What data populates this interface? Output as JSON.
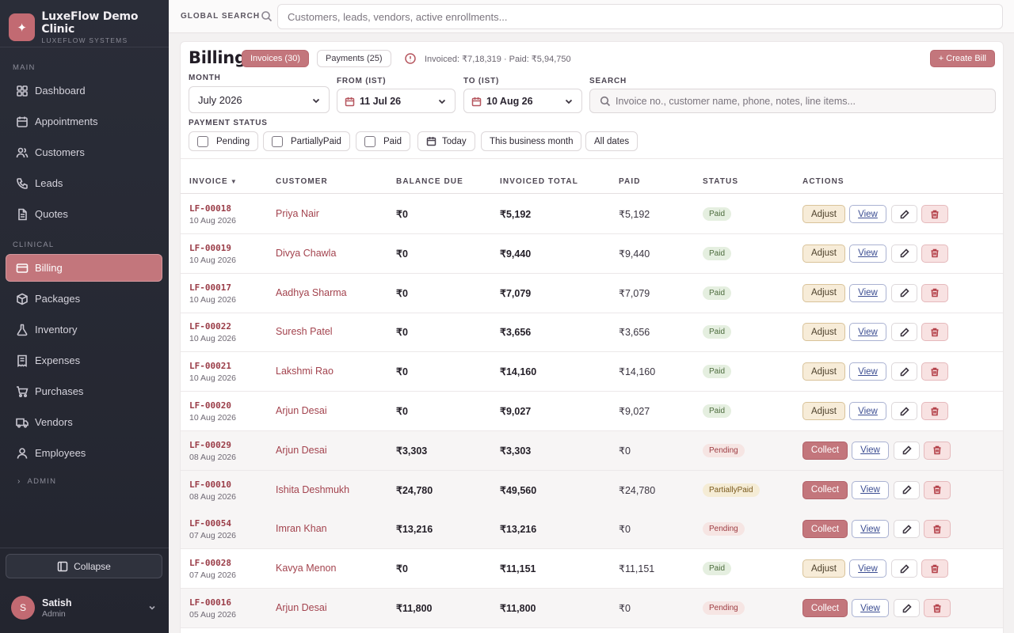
{
  "brand": {
    "name": "LuxeFlow Demo Clinic",
    "subtitle": "LUXEFLOW SYSTEMS"
  },
  "sidebar": {
    "section_main": "MAIN",
    "main_items": [
      {
        "label": "Dashboard",
        "icon": "dashboard-icon"
      },
      {
        "label": "Appointments",
        "icon": "calendar-icon"
      },
      {
        "label": "Customers",
        "icon": "users-icon"
      },
      {
        "label": "Leads",
        "icon": "phone-icon"
      },
      {
        "label": "Quotes",
        "icon": "document-icon"
      }
    ],
    "section_clinical": "CLINICAL",
    "clinical_items": [
      {
        "label": "Billing",
        "icon": "card-icon",
        "active": true
      },
      {
        "label": "Packages",
        "icon": "box-icon"
      },
      {
        "label": "Inventory",
        "icon": "flask-icon"
      },
      {
        "label": "Expenses",
        "icon": "receipt-icon"
      },
      {
        "label": "Purchases",
        "icon": "cart-icon"
      },
      {
        "label": "Vendors",
        "icon": "truck-icon"
      },
      {
        "label": "Employees",
        "icon": "user-icon"
      }
    ],
    "admin_label": "ADMIN",
    "collapse_label": "Collapse",
    "user": {
      "initial": "S",
      "name": "Satish",
      "role": "Admin"
    }
  },
  "topbar": {
    "label": "GLOBAL SEARCH",
    "placeholder": "Customers, leads, vendors, active enrollments..."
  },
  "billing": {
    "title": "Billing",
    "tab_invoices": "Invoices (30)",
    "tab_payments": "Payments (25)",
    "summary": "Invoiced: ₹7,18,319 · Paid: ₹5,94,750",
    "create_label": "+ Create Bill",
    "month_label": "MONTH",
    "month_value": "July 2026",
    "from_label": "FROM (IST)",
    "from_value": "11 Jul 26",
    "to_label": "TO (IST)",
    "to_value": "10 Aug 26",
    "search_label": "SEARCH",
    "search_placeholder": "Invoice no., customer name, phone, notes, line items...",
    "payment_status_label": "PAYMENT STATUS",
    "status_chips": [
      "Pending",
      "PartiallyPaid",
      "Paid"
    ],
    "date_chips": [
      "Today",
      "This business month",
      "All dates"
    ]
  },
  "table": {
    "headers": {
      "invoice": "INVOICE",
      "sort_indicator": "▼",
      "customer": "CUSTOMER",
      "balance": "BALANCE DUE",
      "total": "INVOICED TOTAL",
      "paid": "PAID",
      "status": "STATUS",
      "actions": "ACTIONS"
    },
    "action_labels": {
      "adjust": "Adjust",
      "collect": "Collect",
      "view": "View"
    },
    "rows": [
      {
        "invoice": "LF-00018",
        "date": "10 Aug 2026",
        "customer": "Priya Nair",
        "balance": "₹0",
        "total": "₹5,192",
        "paid": "₹5,192",
        "status": "Paid",
        "primary": "Adjust"
      },
      {
        "invoice": "LF-00019",
        "date": "10 Aug 2026",
        "customer": "Divya Chawla",
        "balance": "₹0",
        "total": "₹9,440",
        "paid": "₹9,440",
        "status": "Paid",
        "primary": "Adjust"
      },
      {
        "invoice": "LF-00017",
        "date": "10 Aug 2026",
        "customer": "Aadhya Sharma",
        "balance": "₹0",
        "total": "₹7,079",
        "paid": "₹7,079",
        "status": "Paid",
        "primary": "Adjust"
      },
      {
        "invoice": "LF-00022",
        "date": "10 Aug 2026",
        "customer": "Suresh Patel",
        "balance": "₹0",
        "total": "₹3,656",
        "paid": "₹3,656",
        "status": "Paid",
        "primary": "Adjust"
      },
      {
        "invoice": "LF-00021",
        "date": "10 Aug 2026",
        "customer": "Lakshmi Rao",
        "balance": "₹0",
        "total": "₹14,160",
        "paid": "₹14,160",
        "status": "Paid",
        "primary": "Adjust"
      },
      {
        "invoice": "LF-00020",
        "date": "10 Aug 2026",
        "customer": "Arjun Desai",
        "balance": "₹0",
        "total": "₹9,027",
        "paid": "₹9,027",
        "status": "Paid",
        "primary": "Adjust"
      },
      {
        "invoice": "LF-00029",
        "date": "08 Aug 2026",
        "customer": "Arjun Desai",
        "balance": "₹3,303",
        "total": "₹3,303",
        "paid": "₹0",
        "status": "Pending",
        "primary": "Collect"
      },
      {
        "invoice": "LF-00010",
        "date": "08 Aug 2026",
        "customer": "Ishita Deshmukh",
        "balance": "₹24,780",
        "total": "₹49,560",
        "paid": "₹24,780",
        "status": "PartiallyPaid",
        "primary": "Collect"
      },
      {
        "invoice": "LF-00054",
        "date": "07 Aug 2026",
        "customer": "Imran Khan",
        "balance": "₹13,216",
        "total": "₹13,216",
        "paid": "₹0",
        "status": "Pending",
        "primary": "Collect"
      },
      {
        "invoice": "LF-00028",
        "date": "07 Aug 2026",
        "customer": "Kavya Menon",
        "balance": "₹0",
        "total": "₹11,151",
        "paid": "₹11,151",
        "status": "Paid",
        "primary": "Adjust"
      },
      {
        "invoice": "LF-00016",
        "date": "05 Aug 2026",
        "customer": "Arjun Desai",
        "balance": "₹11,800",
        "total": "₹11,800",
        "paid": "₹0",
        "status": "Pending",
        "primary": "Collect"
      }
    ]
  }
}
